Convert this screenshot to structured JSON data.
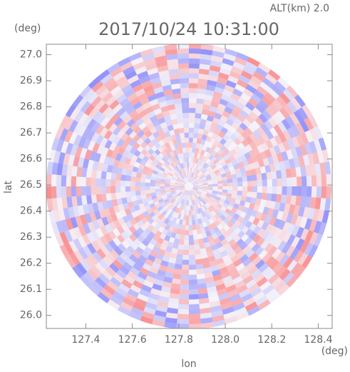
{
  "chart_data": {
    "type": "radar-ppi",
    "title": "2017/10/24 10:31:00",
    "subtitle": "ALT(km) 2.0",
    "y_unit": "(deg)",
    "x_unit": "(deg)",
    "xlabel": "lon",
    "ylabel": "lat",
    "xlim": [
      127.23,
      128.46
    ],
    "ylim": [
      25.95,
      27.04
    ],
    "xticks": [
      127.4,
      127.6,
      127.8,
      {
        "value": 128.0,
        "label": "128.0"
      },
      128.2,
      128.4
    ],
    "yticks": [
      {
        "value": 26.0,
        "label": "26.0"
      },
      26.1,
      26.2,
      26.3,
      26.4,
      26.5,
      26.6,
      26.7,
      26.8,
      26.9,
      {
        "value": 27.0,
        "label": "27.0"
      }
    ]
  }
}
